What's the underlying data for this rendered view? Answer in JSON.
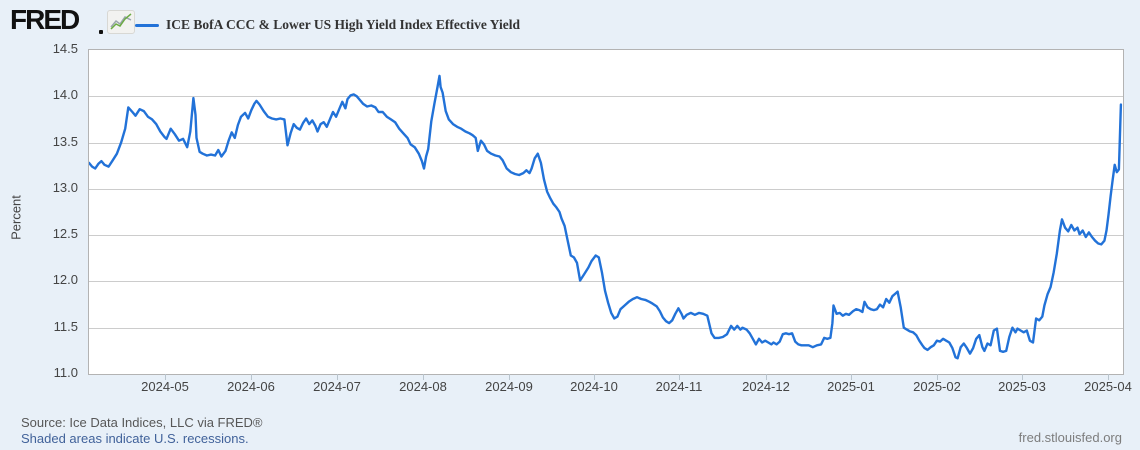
{
  "header": {
    "logo_text": "FRED",
    "legend_label": "ICE BofA CCC & Lower US High Yield Index Effective Yield"
  },
  "footer": {
    "source": "Source: Ice Data Indices, LLC via FRED®",
    "recessions_note": "Shaded areas indicate U.S. recessions.",
    "site": "fred.stlouisfed.org"
  },
  "colors": {
    "line": "#2272d8",
    "grid": "#cccccc",
    "plot_border": "#b3b3b3",
    "background": "#e8f0f8",
    "icon_green": "#6cab43",
    "icon_gray": "#9aa5ad"
  },
  "chart_data": {
    "type": "line",
    "title": "ICE BofA CCC & Lower US High Yield Index Effective Yield",
    "ylabel": "Percent",
    "xlabel": "",
    "ylim": [
      11.0,
      14.5
    ],
    "y_ticks": [
      14.5,
      14.0,
      13.5,
      13.0,
      12.5,
      12.0,
      11.5,
      11.0
    ],
    "grid": "horizontal",
    "legend_position": "top",
    "x_axis_note": "x values in points are 0-1000 spanning early Apr 2024 to early Apr 2025",
    "x_tick_labels": [
      "2024-05",
      "2024-06",
      "2024-07",
      "2024-08",
      "2024-09",
      "2024-10",
      "2024-11",
      "2024-12",
      "2025-01",
      "2025-02",
      "2025-03",
      "2025-04"
    ],
    "x_tick_pos": [
      74,
      158,
      241,
      324,
      407,
      489,
      572,
      656,
      738,
      821,
      903,
      986
    ],
    "points": [
      [
        0,
        13.28
      ],
      [
        3,
        13.24
      ],
      [
        6,
        13.22
      ],
      [
        9,
        13.27
      ],
      [
        12,
        13.3
      ],
      [
        15,
        13.26
      ],
      [
        19,
        13.24
      ],
      [
        23,
        13.31
      ],
      [
        27,
        13.38
      ],
      [
        31,
        13.5
      ],
      [
        35,
        13.65
      ],
      [
        38,
        13.88
      ],
      [
        42,
        13.83
      ],
      [
        45,
        13.79
      ],
      [
        49,
        13.86
      ],
      [
        53,
        13.84
      ],
      [
        57,
        13.78
      ],
      [
        61,
        13.75
      ],
      [
        65,
        13.7
      ],
      [
        69,
        13.62
      ],
      [
        73,
        13.56
      ],
      [
        75,
        13.54
      ],
      [
        79,
        13.65
      ],
      [
        83,
        13.59
      ],
      [
        87,
        13.52
      ],
      [
        91,
        13.54
      ],
      [
        95,
        13.45
      ],
      [
        98,
        13.62
      ],
      [
        101,
        13.98
      ],
      [
        103,
        13.8
      ],
      [
        104,
        13.55
      ],
      [
        107,
        13.4
      ],
      [
        110,
        13.38
      ],
      [
        114,
        13.36
      ],
      [
        118,
        13.37
      ],
      [
        122,
        13.36
      ],
      [
        125,
        13.42
      ],
      [
        128,
        13.35
      ],
      [
        132,
        13.41
      ],
      [
        135,
        13.52
      ],
      [
        138,
        13.61
      ],
      [
        141,
        13.55
      ],
      [
        144,
        13.69
      ],
      [
        147,
        13.78
      ],
      [
        151,
        13.82
      ],
      [
        154,
        13.76
      ],
      [
        157,
        13.85
      ],
      [
        160,
        13.92
      ],
      [
        162,
        13.95
      ],
      [
        165,
        13.91
      ],
      [
        169,
        13.84
      ],
      [
        173,
        13.78
      ],
      [
        177,
        13.76
      ],
      [
        181,
        13.75
      ],
      [
        185,
        13.76
      ],
      [
        189,
        13.75
      ],
      [
        192,
        13.47
      ],
      [
        195,
        13.6
      ],
      [
        198,
        13.7
      ],
      [
        201,
        13.66
      ],
      [
        204,
        13.64
      ],
      [
        207,
        13.71
      ],
      [
        210,
        13.76
      ],
      [
        213,
        13.7
      ],
      [
        216,
        13.74
      ],
      [
        219,
        13.68
      ],
      [
        221,
        13.62
      ],
      [
        224,
        13.7
      ],
      [
        227,
        13.72
      ],
      [
        230,
        13.67
      ],
      [
        233,
        13.75
      ],
      [
        236,
        13.83
      ],
      [
        239,
        13.78
      ],
      [
        242,
        13.86
      ],
      [
        245,
        13.94
      ],
      [
        248,
        13.87
      ],
      [
        250,
        13.97
      ],
      [
        253,
        14.01
      ],
      [
        256,
        14.02
      ],
      [
        259,
        14.0
      ],
      [
        262,
        13.96
      ],
      [
        265,
        13.92
      ],
      [
        269,
        13.89
      ],
      [
        273,
        13.9
      ],
      [
        277,
        13.88
      ],
      [
        280,
        13.83
      ],
      [
        284,
        13.83
      ],
      [
        288,
        13.78
      ],
      [
        292,
        13.75
      ],
      [
        296,
        13.72
      ],
      [
        300,
        13.65
      ],
      [
        304,
        13.6
      ],
      [
        308,
        13.55
      ],
      [
        311,
        13.48
      ],
      [
        315,
        13.45
      ],
      [
        319,
        13.38
      ],
      [
        322,
        13.3
      ],
      [
        324,
        13.22
      ],
      [
        326,
        13.35
      ],
      [
        328,
        13.43
      ],
      [
        331,
        13.73
      ],
      [
        334,
        13.92
      ],
      [
        337,
        14.1
      ],
      [
        339,
        14.22
      ],
      [
        340,
        14.1
      ],
      [
        342,
        14.04
      ],
      [
        345,
        13.84
      ],
      [
        348,
        13.75
      ],
      [
        352,
        13.7
      ],
      [
        356,
        13.67
      ],
      [
        360,
        13.65
      ],
      [
        364,
        13.62
      ],
      [
        368,
        13.6
      ],
      [
        371,
        13.58
      ],
      [
        374,
        13.55
      ],
      [
        376,
        13.41
      ],
      [
        379,
        13.52
      ],
      [
        382,
        13.48
      ],
      [
        385,
        13.41
      ],
      [
        389,
        13.38
      ],
      [
        393,
        13.36
      ],
      [
        397,
        13.35
      ],
      [
        400,
        13.31
      ],
      [
        404,
        13.22
      ],
      [
        408,
        13.18
      ],
      [
        412,
        13.16
      ],
      [
        416,
        13.15
      ],
      [
        420,
        13.17
      ],
      [
        423,
        13.2
      ],
      [
        426,
        13.17
      ],
      [
        428,
        13.22
      ],
      [
        431,
        13.33
      ],
      [
        434,
        13.38
      ],
      [
        437,
        13.28
      ],
      [
        440,
        13.1
      ],
      [
        443,
        12.97
      ],
      [
        446,
        12.9
      ],
      [
        449,
        12.84
      ],
      [
        452,
        12.8
      ],
      [
        455,
        12.75
      ],
      [
        457,
        12.68
      ],
      [
        460,
        12.6
      ],
      [
        463,
        12.44
      ],
      [
        466,
        12.28
      ],
      [
        469,
        12.26
      ],
      [
        472,
        12.2
      ],
      [
        475,
        12.01
      ],
      [
        479,
        12.08
      ],
      [
        483,
        12.15
      ],
      [
        486,
        12.22
      ],
      [
        490,
        12.28
      ],
      [
        493,
        12.26
      ],
      [
        496,
        12.1
      ],
      [
        499,
        11.9
      ],
      [
        502,
        11.77
      ],
      [
        505,
        11.66
      ],
      [
        508,
        11.6
      ],
      [
        511,
        11.62
      ],
      [
        514,
        11.7
      ],
      [
        518,
        11.74
      ],
      [
        522,
        11.78
      ],
      [
        526,
        11.81
      ],
      [
        530,
        11.83
      ],
      [
        534,
        11.81
      ],
      [
        538,
        11.8
      ],
      [
        542,
        11.78
      ],
      [
        545,
        11.76
      ],
      [
        549,
        11.73
      ],
      [
        552,
        11.68
      ],
      [
        555,
        11.61
      ],
      [
        558,
        11.57
      ],
      [
        561,
        11.55
      ],
      [
        564,
        11.58
      ],
      [
        567,
        11.65
      ],
      [
        570,
        11.71
      ],
      [
        573,
        11.65
      ],
      [
        575,
        11.6
      ],
      [
        578,
        11.64
      ],
      [
        582,
        11.66
      ],
      [
        586,
        11.64
      ],
      [
        590,
        11.66
      ],
      [
        594,
        11.65
      ],
      [
        598,
        11.63
      ],
      [
        602,
        11.44
      ],
      [
        605,
        11.39
      ],
      [
        609,
        11.39
      ],
      [
        613,
        11.4
      ],
      [
        617,
        11.43
      ],
      [
        621,
        11.52
      ],
      [
        624,
        11.48
      ],
      [
        627,
        11.52
      ],
      [
        630,
        11.48
      ],
      [
        632,
        11.5
      ],
      [
        636,
        11.48
      ],
      [
        639,
        11.44
      ],
      [
        642,
        11.38
      ],
      [
        645,
        11.32
      ],
      [
        648,
        11.38
      ],
      [
        651,
        11.34
      ],
      [
        654,
        11.36
      ],
      [
        657,
        11.34
      ],
      [
        660,
        11.32
      ],
      [
        662,
        11.34
      ],
      [
        665,
        11.32
      ],
      [
        668,
        11.35
      ],
      [
        671,
        11.43
      ],
      [
        674,
        11.44
      ],
      [
        677,
        11.43
      ],
      [
        680,
        11.44
      ],
      [
        683,
        11.35
      ],
      [
        686,
        11.32
      ],
      [
        689,
        11.31
      ],
      [
        692,
        11.31
      ],
      [
        696,
        11.31
      ],
      [
        700,
        11.29
      ],
      [
        704,
        11.31
      ],
      [
        708,
        11.32
      ],
      [
        711,
        11.39
      ],
      [
        714,
        11.38
      ],
      [
        717,
        11.39
      ],
      [
        719,
        11.55
      ],
      [
        720,
        11.74
      ],
      [
        723,
        11.65
      ],
      [
        726,
        11.66
      ],
      [
        729,
        11.63
      ],
      [
        732,
        11.65
      ],
      [
        735,
        11.64
      ],
      [
        739,
        11.68
      ],
      [
        742,
        11.7
      ],
      [
        745,
        11.69
      ],
      [
        748,
        11.67
      ],
      [
        750,
        11.78
      ],
      [
        753,
        11.72
      ],
      [
        756,
        11.7
      ],
      [
        759,
        11.69
      ],
      [
        762,
        11.7
      ],
      [
        765,
        11.75
      ],
      [
        768,
        11.72
      ],
      [
        771,
        11.81
      ],
      [
        774,
        11.77
      ],
      [
        777,
        11.84
      ],
      [
        780,
        11.87
      ],
      [
        782,
        11.89
      ],
      [
        785,
        11.72
      ],
      [
        788,
        11.5
      ],
      [
        791,
        11.48
      ],
      [
        794,
        11.46
      ],
      [
        797,
        11.45
      ],
      [
        800,
        11.42
      ],
      [
        803,
        11.36
      ],
      [
        806,
        11.31
      ],
      [
        808,
        11.28
      ],
      [
        811,
        11.26
      ],
      [
        814,
        11.29
      ],
      [
        817,
        11.31
      ],
      [
        820,
        11.36
      ],
      [
        823,
        11.35
      ],
      [
        826,
        11.38
      ],
      [
        829,
        11.36
      ],
      [
        832,
        11.34
      ],
      [
        835,
        11.28
      ],
      [
        838,
        11.18
      ],
      [
        840,
        11.17
      ],
      [
        843,
        11.29
      ],
      [
        846,
        11.33
      ],
      [
        849,
        11.28
      ],
      [
        852,
        11.22
      ],
      [
        855,
        11.28
      ],
      [
        858,
        11.38
      ],
      [
        861,
        11.42
      ],
      [
        864,
        11.29
      ],
      [
        866,
        11.25
      ],
      [
        869,
        11.33
      ],
      [
        872,
        11.31
      ],
      [
        875,
        11.47
      ],
      [
        878,
        11.49
      ],
      [
        881,
        11.25
      ],
      [
        884,
        11.24
      ],
      [
        887,
        11.25
      ],
      [
        890,
        11.4
      ],
      [
        893,
        11.5
      ],
      [
        896,
        11.45
      ],
      [
        898,
        11.49
      ],
      [
        901,
        11.47
      ],
      [
        904,
        11.45
      ],
      [
        907,
        11.47
      ],
      [
        910,
        11.36
      ],
      [
        913,
        11.34
      ],
      [
        916,
        11.6
      ],
      [
        919,
        11.58
      ],
      [
        922,
        11.62
      ],
      [
        924,
        11.74
      ],
      [
        927,
        11.86
      ],
      [
        930,
        11.94
      ],
      [
        933,
        12.1
      ],
      [
        936,
        12.3
      ],
      [
        939,
        12.55
      ],
      [
        941,
        12.67
      ],
      [
        944,
        12.58
      ],
      [
        947,
        12.54
      ],
      [
        950,
        12.61
      ],
      [
        953,
        12.55
      ],
      [
        956,
        12.58
      ],
      [
        958,
        12.51
      ],
      [
        961,
        12.55
      ],
      [
        964,
        12.48
      ],
      [
        967,
        12.53
      ],
      [
        970,
        12.48
      ],
      [
        973,
        12.44
      ],
      [
        976,
        12.41
      ],
      [
        979,
        12.4
      ],
      [
        982,
        12.44
      ],
      [
        984,
        12.55
      ],
      [
        986,
        12.72
      ],
      [
        988,
        12.92
      ],
      [
        990,
        13.1
      ],
      [
        992,
        13.26
      ],
      [
        994,
        13.18
      ],
      [
        996,
        13.21
      ],
      [
        998,
        13.91
      ]
    ]
  }
}
